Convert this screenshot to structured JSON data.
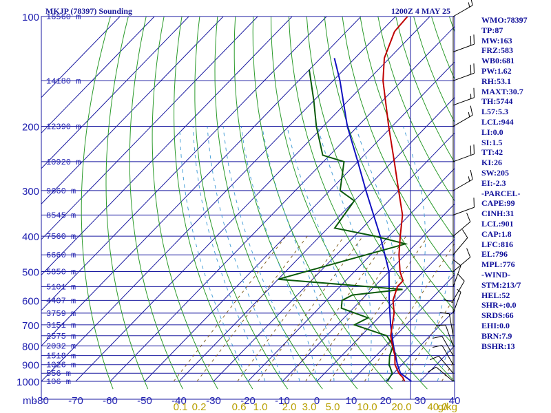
{
  "header": {
    "title": "MKJP (78397) Sounding",
    "time": "1200Z  4 MAY 25"
  },
  "colors": {
    "frame": "#1a1aa0",
    "isotherm": "#1a1aa0",
    "dry_adiabat": "#2a9a2a",
    "moist_adiabat": "#4aa0d8",
    "mixing_ratio": "#806020",
    "temperature": "#c00000",
    "dewpoint": "#0a5a0a",
    "parcel": "#1010c0",
    "wind": "#000000",
    "mr_label": "#b8a000"
  },
  "chart_data": {
    "type": "skew-t log-p",
    "pressure_axis_mb": [
      100,
      200,
      300,
      400,
      500,
      600,
      700,
      800,
      900,
      1000
    ],
    "pressure_unit_label": "mb",
    "temperature_axis_c": [
      -80,
      -70,
      -60,
      -50,
      -40,
      -30,
      -20,
      -10,
      0,
      10,
      20,
      30,
      40
    ],
    "mixing_ratio_labels": [
      "0.1",
      "0.2",
      "0.6",
      "1.0",
      "2.0",
      "3.0",
      "5.0",
      "10.0",
      "20.0",
      "40.0"
    ],
    "mixing_ratio_values": [
      0.1,
      0.2,
      0.6,
      1.0,
      2.0,
      3.0,
      5.0,
      10.0,
      20.0,
      40.0
    ],
    "mixing_ratio_unit": "g/kg",
    "height_labels": [
      {
        "p": 100,
        "text": "16560 m"
      },
      {
        "p": 150,
        "text": "14180 m"
      },
      {
        "p": 200,
        "text": "12390 m"
      },
      {
        "p": 250,
        "text": "10920 m"
      },
      {
        "p": 300,
        "text": "9660 m"
      },
      {
        "p": 350,
        "text": "8545 m"
      },
      {
        "p": 400,
        "text": "7560 m"
      },
      {
        "p": 450,
        "text": "6660 m"
      },
      {
        "p": 500,
        "text": "5850 m"
      },
      {
        "p": 550,
        "text": "5101 m"
      },
      {
        "p": 600,
        "text": "4407 m"
      },
      {
        "p": 650,
        "text": "3759 m"
      },
      {
        "p": 700,
        "text": "3151 m"
      },
      {
        "p": 750,
        "text": "2575 m"
      },
      {
        "p": 800,
        "text": "2032 m"
      },
      {
        "p": 850,
        "text": "1518 m"
      },
      {
        "p": 900,
        "text": "1026 m"
      },
      {
        "p": 950,
        "text": "556 m"
      },
      {
        "p": 1000,
        "text": "106 m"
      }
    ],
    "temperature_profile": [
      {
        "p": 1000,
        "t": 25.5
      },
      {
        "p": 975,
        "t": 23.8
      },
      {
        "p": 950,
        "t": 21.5
      },
      {
        "p": 925,
        "t": 19.8
      },
      {
        "p": 900,
        "t": 18.0
      },
      {
        "p": 850,
        "t": 15.4
      },
      {
        "p": 800,
        "t": 12.0
      },
      {
        "p": 750,
        "t": 8.6
      },
      {
        "p": 700,
        "t": 6.0
      },
      {
        "p": 650,
        "t": 3.2
      },
      {
        "p": 600,
        "t": -0.7
      },
      {
        "p": 550,
        "t": -3.3
      },
      {
        "p": 530,
        "t": -3.3
      },
      {
        "p": 500,
        "t": -6.8
      },
      {
        "p": 450,
        "t": -11.8
      },
      {
        "p": 400,
        "t": -16.7
      },
      {
        "p": 350,
        "t": -22.0
      },
      {
        "p": 300,
        "t": -30.0
      },
      {
        "p": 250,
        "t": -39.4
      },
      {
        "p": 200,
        "t": -51.0
      },
      {
        "p": 150,
        "t": -65.5
      },
      {
        "p": 130,
        "t": -71.5
      },
      {
        "p": 110,
        "t": -76.0
      },
      {
        "p": 100,
        "t": -76.5
      }
    ],
    "dewpoint_profile": [
      {
        "p": 1000,
        "td": 20.5
      },
      {
        "p": 950,
        "td": 19.6
      },
      {
        "p": 900,
        "td": 16.3
      },
      {
        "p": 850,
        "td": 13.9
      },
      {
        "p": 800,
        "td": 12.2
      },
      {
        "p": 750,
        "td": 7.5
      },
      {
        "p": 700,
        "td": -5.0
      },
      {
        "p": 670,
        "td": -3.0
      },
      {
        "p": 630,
        "td": -13.5
      },
      {
        "p": 600,
        "td": -15.5
      },
      {
        "p": 580,
        "td": -14.0
      },
      {
        "p": 560,
        "td": -1.0
      },
      {
        "p": 525,
        "td": -40.0
      },
      {
        "p": 420,
        "td": -13.0
      },
      {
        "p": 400,
        "td": -24.0
      },
      {
        "p": 380,
        "td": -38.0
      },
      {
        "p": 320,
        "td": -40.0
      },
      {
        "p": 300,
        "td": -47.0
      },
      {
        "p": 250,
        "td": -54.0
      },
      {
        "p": 240,
        "td": -62.0
      },
      {
        "p": 200,
        "td": -72.0
      },
      {
        "p": 170,
        "td": -80.0
      },
      {
        "p": 140,
        "td": -90.0
      }
    ],
    "parcel_profile": [
      {
        "p": 1000,
        "t": 27.5
      },
      {
        "p": 950,
        "t": 22.0
      },
      {
        "p": 900,
        "t": 18.7
      },
      {
        "p": 850,
        "t": 15.6
      },
      {
        "p": 800,
        "t": 12.3
      },
      {
        "p": 700,
        "t": 5.5
      },
      {
        "p": 600,
        "t": -1.8
      },
      {
        "p": 500,
        "t": -10.0
      },
      {
        "p": 400,
        "t": -22.5
      },
      {
        "p": 300,
        "t": -39.5
      },
      {
        "p": 250,
        "t": -50.0
      },
      {
        "p": 200,
        "t": -63.0
      },
      {
        "p": 150,
        "t": -78.0
      },
      {
        "p": 130,
        "t": -86.0
      }
    ],
    "wind_barbs": [
      {
        "p": 100,
        "dir": 240,
        "spd": 15
      },
      {
        "p": 125,
        "dir": 250,
        "spd": 20
      },
      {
        "p": 150,
        "dir": 250,
        "spd": 20
      },
      {
        "p": 175,
        "dir": 250,
        "spd": 15
      },
      {
        "p": 200,
        "dir": 240,
        "spd": 15
      },
      {
        "p": 250,
        "dir": 250,
        "spd": 20
      },
      {
        "p": 300,
        "dir": 240,
        "spd": 15
      },
      {
        "p": 350,
        "dir": 250,
        "spd": 10
      },
      {
        "p": 400,
        "dir": 230,
        "spd": 10
      },
      {
        "p": 450,
        "dir": 220,
        "spd": 10
      },
      {
        "p": 500,
        "dir": 230,
        "spd": 10
      },
      {
        "p": 550,
        "dir": 200,
        "spd": 10
      },
      {
        "p": 600,
        "dir": 210,
        "spd": 10
      },
      {
        "p": 650,
        "dir": 200,
        "spd": 5
      },
      {
        "p": 700,
        "dir": 180,
        "spd": 10
      },
      {
        "p": 750,
        "dir": 170,
        "spd": 10
      },
      {
        "p": 800,
        "dir": 160,
        "spd": 10
      },
      {
        "p": 850,
        "dir": 150,
        "spd": 10
      },
      {
        "p": 900,
        "dir": 150,
        "spd": 10
      },
      {
        "p": 950,
        "dir": 140,
        "spd": 10
      },
      {
        "p": 1000,
        "dir": 130,
        "spd": 10
      }
    ]
  },
  "indices": [
    "WMO:78397",
    "TP:87",
    "MW:163",
    "FRZ:583",
    "WB0:681",
    "PW:1.62",
    "RH:53.1",
    "MAXT:30.7",
    "TH:5744",
    "L57:5.3",
    "LCL:944",
    "LI:0.0",
    "SI:1.5",
    "TT:42",
    "KI:26",
    "SW:205",
    "EI:-2.3",
    "-PARCEL-",
    "CAPE:99",
    "CINH:31",
    "LCL:901",
    "CAP:1.8",
    "LFC:816",
    "EL:796",
    "MPL:776",
    "-WIND-",
    "STM:213/7",
    "HEL:52",
    "SHR+:0.0",
    "SRDS:66",
    "EHI:0.0",
    "BRN:7.9",
    "BSHR:13"
  ]
}
